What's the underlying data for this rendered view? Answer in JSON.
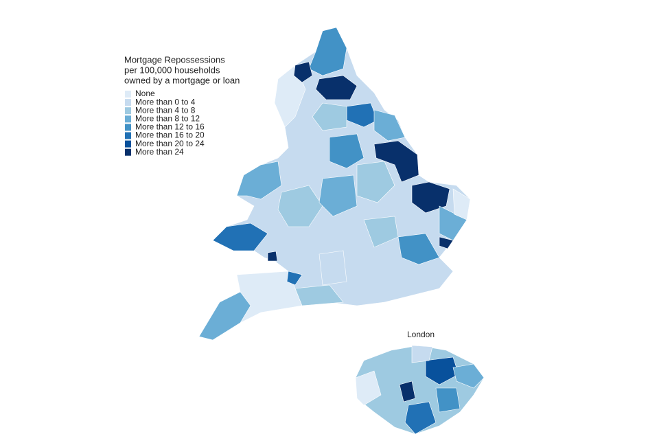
{
  "legend": {
    "title_lines": [
      "Mortgage Repossessions",
      "per 100,000 households",
      "owned by a mortgage or loan"
    ],
    "items": [
      {
        "label": "None",
        "color": "#deebf7"
      },
      {
        "label": "More than 0 to 4",
        "color": "#c6dbef"
      },
      {
        "label": "More than 4 to 8",
        "color": "#9ecae1"
      },
      {
        "label": "More than 8 to 12",
        "color": "#6baed6"
      },
      {
        "label": "More than 12 to 16",
        "color": "#4292c6"
      },
      {
        "label": "More than 16 to 20",
        "color": "#2171b5"
      },
      {
        "label": "More than 20 to 24",
        "color": "#08519c"
      },
      {
        "label": "More than 24",
        "color": "#08306b"
      }
    ]
  },
  "inset": {
    "title": "London"
  }
}
